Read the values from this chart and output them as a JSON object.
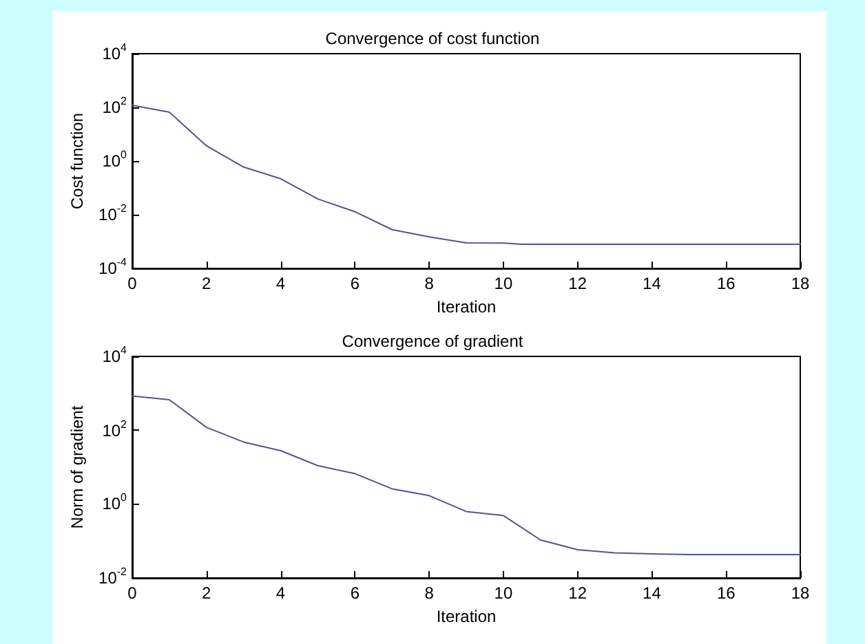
{
  "chart_data": [
    {
      "type": "line",
      "title": "Convergence of cost function",
      "xlabel": "Iteration",
      "ylabel": "Cost function",
      "log": "y",
      "grid": false,
      "marker": "none",
      "line_style": "solid",
      "xlim": [
        0,
        18
      ],
      "xticks": [
        0,
        2,
        4,
        6,
        8,
        10,
        12,
        14,
        16,
        18
      ],
      "ylim": [
        0.0001,
        10000
      ],
      "yticks": [
        {
          "value": 0.0001,
          "label": "10$^{-4}$"
        },
        {
          "value": 0.01,
          "label": "10$^{-2}$"
        },
        {
          "value": 1,
          "label": "10$^{0}$"
        },
        {
          "value": 100,
          "label": "10$^{2}$"
        },
        {
          "value": 10000,
          "label": "10$^{4}$"
        }
      ],
      "x": [
        0,
        1,
        2,
        3,
        4,
        5,
        6,
        7,
        8,
        9,
        10,
        10.5,
        11,
        12,
        13,
        14,
        15,
        16,
        17,
        18
      ],
      "series": [
        {
          "color": "#5050a8",
          "values": [
            120,
            66,
            3.7,
            0.6,
            0.22,
            0.039,
            0.013,
            0.0028,
            0.0015,
            0.0009,
            0.00088,
            0.0008,
            0.0008,
            0.0008,
            0.0008,
            0.0008,
            0.0008,
            0.0008,
            0.0008,
            0.0008
          ]
        }
      ]
    },
    {
      "type": "line",
      "title": "Convergence of gradient",
      "xlabel": "Iteration",
      "ylabel": "Norm of gradient",
      "log": "y",
      "grid": false,
      "marker": "none",
      "line_style": "solid",
      "xlim": [
        0,
        18
      ],
      "xticks": [
        0,
        2,
        4,
        6,
        8,
        10,
        12,
        14,
        16,
        18
      ],
      "ylim": [
        0.01,
        10000
      ],
      "yticks": [
        {
          "value": 0.01,
          "label": "10$^{-2}$"
        },
        {
          "value": 1,
          "label": "10$^{0}$"
        },
        {
          "value": 100,
          "label": "10$^{2}$"
        },
        {
          "value": 10000,
          "label": "10$^{4}$"
        }
      ],
      "x": [
        0,
        1,
        2,
        3,
        4,
        5,
        6,
        7,
        8,
        9,
        10,
        11,
        12,
        13,
        14,
        15,
        16,
        17,
        18
      ],
      "series": [
        {
          "color": "#5050a8",
          "values": [
            850,
            670,
            120,
            48,
            28,
            11,
            6.7,
            2.6,
            1.7,
            0.63,
            0.49,
            0.107,
            0.058,
            0.048,
            0.045,
            0.043,
            0.043,
            0.043,
            0.043
          ]
        }
      ]
    }
  ]
}
